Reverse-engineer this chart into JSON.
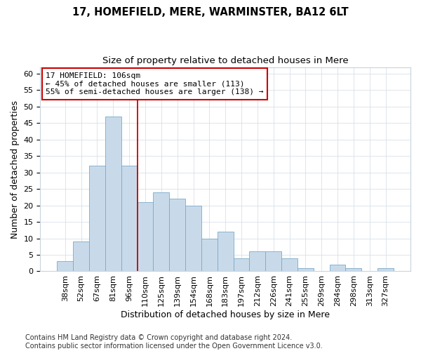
{
  "title": "17, HOMEFIELD, MERE, WARMINSTER, BA12 6LT",
  "subtitle": "Size of property relative to detached houses in Mere",
  "xlabel": "Distribution of detached houses by size in Mere",
  "ylabel": "Number of detached properties",
  "categories": [
    "38sqm",
    "52sqm",
    "67sqm",
    "81sqm",
    "96sqm",
    "110sqm",
    "125sqm",
    "139sqm",
    "154sqm",
    "168sqm",
    "183sqm",
    "197sqm",
    "212sqm",
    "226sqm",
    "241sqm",
    "255sqm",
    "269sqm",
    "284sqm",
    "298sqm",
    "313sqm",
    "327sqm"
  ],
  "values": [
    3,
    9,
    32,
    47,
    32,
    21,
    24,
    22,
    20,
    10,
    12,
    4,
    6,
    6,
    4,
    1,
    0,
    2,
    1,
    0,
    1
  ],
  "bar_color": "#c8daea",
  "bar_edge_color": "#7aaac8",
  "vline_x": 4.5,
  "vline_color": "#cc0000",
  "annotation_line1": "17 HOMEFIELD: 106sqm",
  "annotation_line2": "← 45% of detached houses are smaller (113)",
  "annotation_line3": "55% of semi-detached houses are larger (138) →",
  "annotation_box_color": "#ffffff",
  "annotation_box_edge": "#cc0000",
  "ylim": [
    0,
    62
  ],
  "yticks": [
    0,
    5,
    10,
    15,
    20,
    25,
    30,
    35,
    40,
    45,
    50,
    55,
    60
  ],
  "footer": "Contains HM Land Registry data © Crown copyright and database right 2024.\nContains public sector information licensed under the Open Government Licence v3.0.",
  "title_fontsize": 10.5,
  "subtitle_fontsize": 9.5,
  "axis_label_fontsize": 9,
  "tick_fontsize": 8,
  "annotation_fontsize": 8,
  "footer_fontsize": 7,
  "bg_color": "#ffffff",
  "plot_bg_color": "#ffffff",
  "grid_color": "#d8e0e8"
}
